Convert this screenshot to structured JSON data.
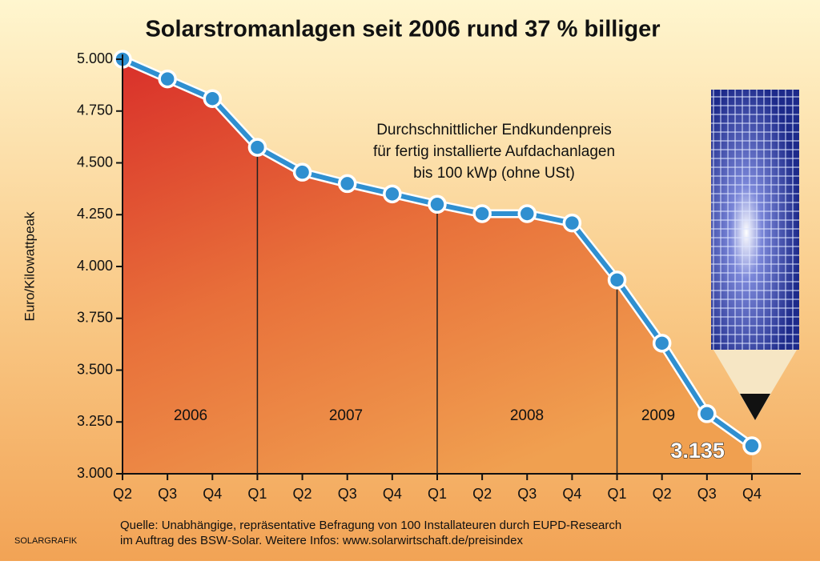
{
  "chart_data": {
    "type": "line",
    "title": "Solarstromanlagen seit 2006 rund 37 % billiger",
    "subtitle": [
      "Durchschnittlicher Endkundenpreis",
      "für fertig installierte Aufdachanlagen",
      "bis 100 kWp (ohne USt)"
    ],
    "y_label": "Euro/Kilowattpeak",
    "categories": [
      "Q2",
      "Q3",
      "Q4",
      "Q1",
      "Q2",
      "Q3",
      "Q4",
      "Q1",
      "Q2",
      "Q3",
      "Q4",
      "Q1",
      "Q2",
      "Q3",
      "Q4"
    ],
    "year_labels": [
      "2006",
      "2007",
      "2008",
      "2009"
    ],
    "series": [
      {
        "name": "Endkundenpreis",
        "color": "#2f8fd0",
        "values": [
          5000,
          4905,
          4810,
          4575,
          4455,
          4400,
          4350,
          4300,
          4255,
          4255,
          4210,
          3935,
          3630,
          3290,
          3135
        ],
        "value_labels": [
          null,
          null,
          null,
          null,
          null,
          null,
          null,
          null,
          null,
          null,
          null,
          null,
          null,
          null,
          "3.135"
        ]
      }
    ],
    "ylim": [
      3000,
      5000
    ],
    "yticks": [
      {
        "value": 3000,
        "label": "3.000"
      },
      {
        "value": 3250,
        "label": "3.250"
      },
      {
        "value": 3500,
        "label": "3.500"
      },
      {
        "value": 3750,
        "label": "3.750"
      },
      {
        "value": 4000,
        "label": "4.000"
      },
      {
        "value": 4250,
        "label": "4.250"
      },
      {
        "value": 4500,
        "label": "4.500"
      },
      {
        "value": 4750,
        "label": "4.750"
      },
      {
        "value": 5000,
        "label": "5.000"
      }
    ],
    "source": [
      "Quelle: Unabhängige, repräsentative Befragung von 100 Installateuren durch EUPD-Research",
      "im Auftrag des BSW-Solar. Weitere Infos: www.solarwirtschaft.de/preisindex"
    ],
    "credit": "SOLARGRAFIK"
  }
}
